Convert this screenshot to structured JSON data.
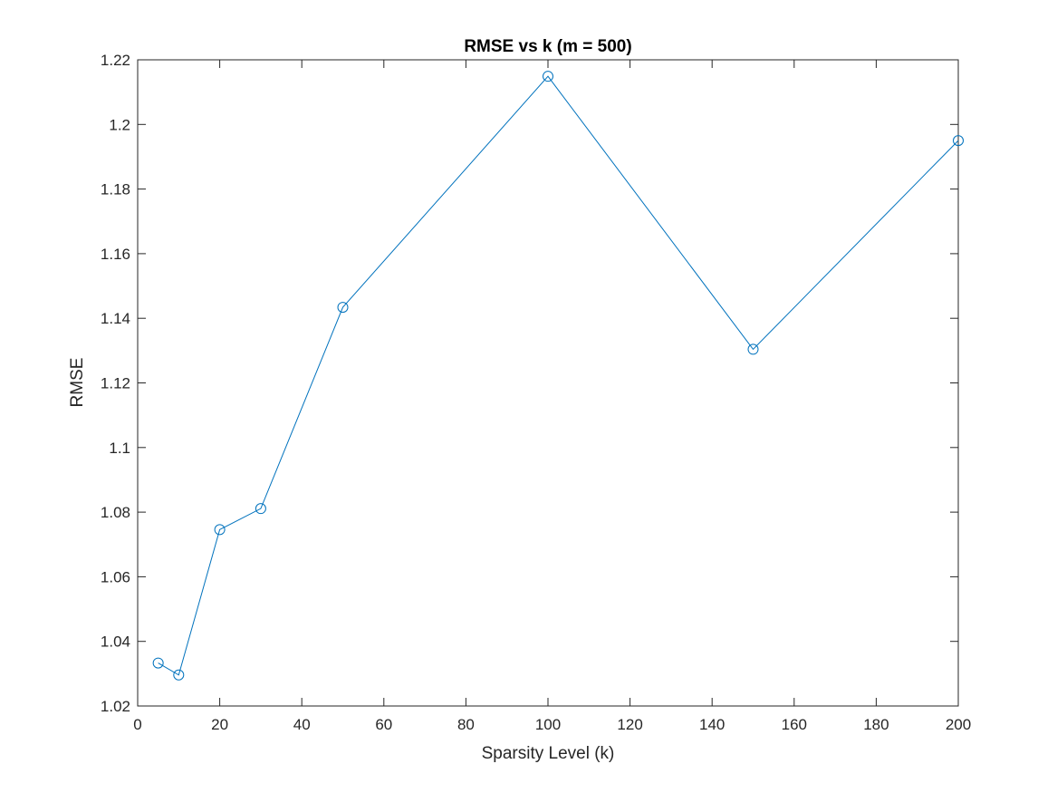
{
  "chart_data": {
    "type": "line",
    "title": "RMSE vs k (m = 500)",
    "xlabel": "Sparsity Level (k)",
    "ylabel": "RMSE",
    "xlim": [
      0,
      200
    ],
    "ylim": [
      1.02,
      1.22
    ],
    "xticks": [
      "0",
      "20",
      "40",
      "60",
      "80",
      "100",
      "120",
      "140",
      "160",
      "180",
      "200"
    ],
    "yticks": [
      "1.02",
      "1.04",
      "1.06",
      "1.08",
      "1.1",
      "1.12",
      "1.14",
      "1.16",
      "1.18",
      "1.2",
      "1.22"
    ],
    "grid": false,
    "marker": "circle",
    "series": [
      {
        "x": [
          5,
          10,
          20,
          30,
          50,
          100,
          150,
          200
        ],
        "y": [
          1.0333,
          1.0296,
          1.0746,
          1.0811,
          1.1434,
          1.2149,
          1.1304,
          1.195
        ],
        "color": "#0072BD"
      }
    ]
  }
}
